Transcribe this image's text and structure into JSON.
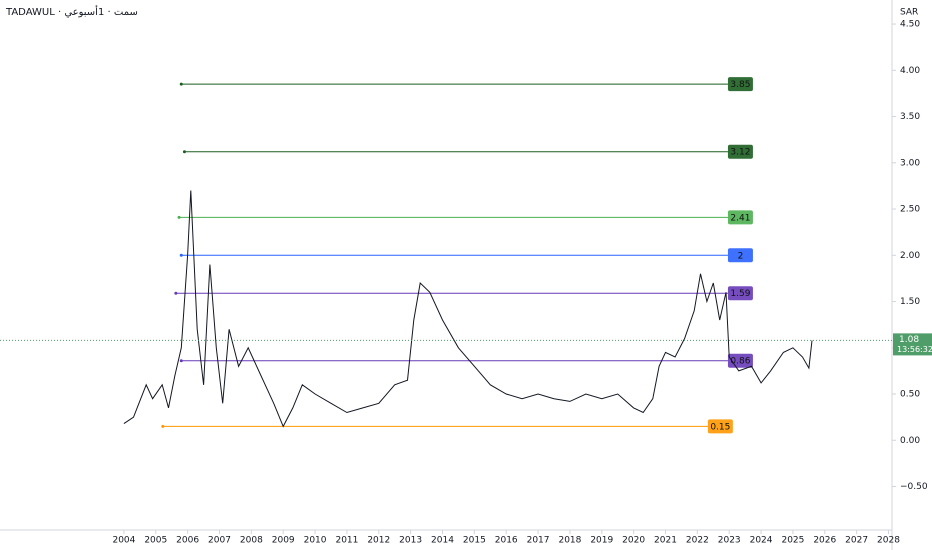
{
  "chart_data": {
    "type": "line",
    "title": "TADAWUL · سمت · 1أسبوعي",
    "currency": "SAR",
    "xlim": [
      2000.11,
      2028.11
    ],
    "xticks": [
      2004,
      2005,
      2006,
      2007,
      2008,
      2009,
      2010,
      2011,
      2012,
      2013,
      2014,
      2015,
      2016,
      2017,
      2018,
      2019,
      2020,
      2021,
      2022,
      2023,
      2024,
      2025,
      2026,
      2027,
      2028
    ],
    "ylim": [
      -0.97,
      4.76
    ],
    "yticks": [
      {
        "value": -0.5,
        "label": "−0.50"
      },
      {
        "value": 0,
        "label": "0.00"
      },
      {
        "value": 0.5,
        "label": "0.50"
      },
      {
        "value": 1,
        "label": "1.00"
      },
      {
        "value": 1.5,
        "label": "1.50"
      },
      {
        "value": 2,
        "label": "2.00"
      },
      {
        "value": 2.5,
        "label": "2.50"
      },
      {
        "value": 3,
        "label": "3.00"
      },
      {
        "value": 3.5,
        "label": "3.50"
      },
      {
        "value": 4,
        "label": "4.00"
      },
      {
        "value": 4.5,
        "label": "4.50"
      }
    ],
    "series": [
      {
        "color": "#131722",
        "x": [
          2004.0,
          2004.3,
          2004.7,
          2004.9,
          2005.2,
          2005.4,
          2005.6,
          2005.8,
          2006.0,
          2006.1,
          2006.3,
          2006.5,
          2006.7,
          2006.9,
          2007.1,
          2007.3,
          2007.6,
          2007.9,
          2008.3,
          2008.7,
          2009.0,
          2009.3,
          2009.6,
          2010.0,
          2010.5,
          2011.0,
          2011.5,
          2012.0,
          2012.5,
          2012.9,
          2013.1,
          2013.3,
          2013.6,
          2014.0,
          2014.5,
          2015.0,
          2015.5,
          2016.0,
          2016.5,
          2017.0,
          2017.5,
          2018.0,
          2018.5,
          2019.0,
          2019.5,
          2020.0,
          2020.3,
          2020.6,
          2020.8,
          2021.0,
          2021.3,
          2021.6,
          2021.9,
          2022.1,
          2022.3,
          2022.5,
          2022.7,
          2022.9,
          2023.0,
          2023.3,
          2023.7,
          2024.0,
          2024.3,
          2024.7,
          2025.0,
          2025.3,
          2025.5,
          2025.6
        ],
        "values": [
          0.18,
          0.25,
          0.6,
          0.45,
          0.6,
          0.35,
          0.7,
          1.0,
          2.0,
          2.7,
          1.2,
          0.6,
          1.9,
          1.0,
          0.4,
          1.2,
          0.8,
          1.0,
          0.7,
          0.4,
          0.15,
          0.35,
          0.6,
          0.5,
          0.4,
          0.3,
          0.35,
          0.4,
          0.6,
          0.65,
          1.3,
          1.7,
          1.6,
          1.3,
          1.0,
          0.8,
          0.6,
          0.5,
          0.45,
          0.5,
          0.45,
          0.42,
          0.5,
          0.45,
          0.5,
          0.35,
          0.3,
          0.45,
          0.8,
          0.95,
          0.9,
          1.1,
          1.4,
          1.8,
          1.5,
          1.7,
          1.3,
          1.6,
          0.9,
          0.75,
          0.8,
          0.62,
          0.75,
          0.95,
          1.0,
          0.9,
          0.78,
          1.08
        ]
      }
    ],
    "levels": [
      {
        "value": 3.85,
        "start": 2005.8,
        "end": 2022.96,
        "color": "#1b5e20"
      },
      {
        "value": 3.12,
        "start": 2005.9,
        "end": 2022.96,
        "color": "#1b5e20"
      },
      {
        "value": 2.41,
        "start": 2005.73,
        "end": 2022.96,
        "color": "#4caf50"
      },
      {
        "value": 2.0,
        "start": 2005.8,
        "end": 2022.96,
        "color": "#2962ff"
      },
      {
        "value": 1.59,
        "start": 2005.63,
        "end": 2022.96,
        "color": "#673ab7"
      },
      {
        "value": 0.86,
        "start": 2005.8,
        "end": 2022.96,
        "color": "#673ab7"
      },
      {
        "value": 0.15,
        "start": 2005.22,
        "end": 2022.33,
        "color": "#ff9800"
      }
    ],
    "last_price": {
      "value": 1.08,
      "countdown": "13:56:32",
      "color": "#4f9d69"
    }
  }
}
